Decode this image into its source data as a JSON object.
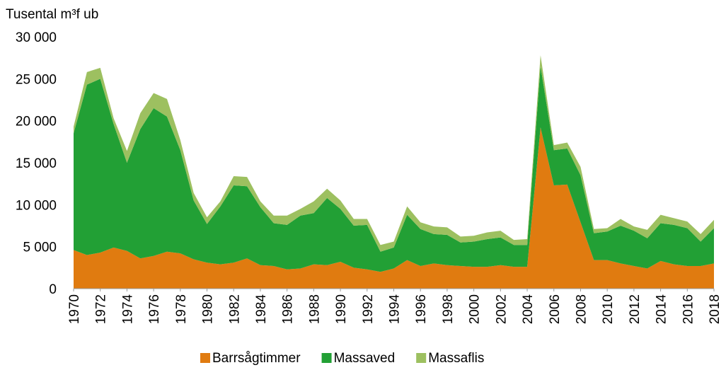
{
  "chart_data": {
    "type": "stacked_area",
    "y_axis_label": "Tusental m³f ub",
    "x": [
      1970,
      1971,
      1972,
      1973,
      1974,
      1975,
      1976,
      1977,
      1978,
      1979,
      1980,
      1981,
      1982,
      1983,
      1984,
      1985,
      1986,
      1987,
      1988,
      1989,
      1990,
      1991,
      1992,
      1993,
      1994,
      1995,
      1996,
      1997,
      1998,
      1999,
      2000,
      2001,
      2002,
      2003,
      2004,
      2005,
      2006,
      2007,
      2008,
      2009,
      2010,
      2011,
      2012,
      2013,
      2014,
      2015,
      2016,
      2017,
      2018
    ],
    "xlim": [
      1970,
      2018
    ],
    "xticks": [
      1970,
      1972,
      1974,
      1976,
      1978,
      1980,
      1982,
      1984,
      1986,
      1988,
      1990,
      1992,
      1994,
      1996,
      1998,
      2000,
      2002,
      2004,
      2006,
      2008,
      2010,
      2012,
      2014,
      2016,
      2018
    ],
    "ylim": [
      0,
      30000
    ],
    "yticks": [
      0,
      {
        "value": 5000,
        "label": "5 000"
      },
      {
        "value": 10000,
        "label": "10 000"
      },
      {
        "value": 15000,
        "label": "15 000"
      },
      {
        "value": 20000,
        "label": "20 000"
      },
      {
        "value": 25000,
        "label": "25 000"
      },
      {
        "value": 30000,
        "label": "30 000"
      }
    ],
    "legend": "bottom",
    "series": [
      {
        "name": "Barrsågtimmer",
        "color": "#e07b10",
        "values": [
          4600,
          4000,
          4300,
          4900,
          4500,
          3600,
          3900,
          4400,
          4200,
          3500,
          3100,
          2900,
          3100,
          3600,
          2800,
          2700,
          2300,
          2400,
          2900,
          2800,
          3200,
          2500,
          2300,
          2000,
          2400,
          3400,
          2700,
          3000,
          2800,
          2700,
          2600,
          2600,
          2800,
          2600,
          2600,
          19200,
          12300,
          12400,
          7900,
          3400,
          3400,
          3000,
          2700,
          2400,
          3300,
          2900,
          2700,
          2700,
          3000
        ]
      },
      {
        "name": "Massaved",
        "color": "#22a035",
        "values": [
          13900,
          20300,
          20700,
          14700,
          10500,
          15400,
          17600,
          16100,
          12300,
          7000,
          4600,
          6900,
          9200,
          8600,
          6900,
          5100,
          5300,
          6300,
          6100,
          8000,
          6300,
          5000,
          5300,
          2400,
          2500,
          5400,
          4400,
          3500,
          3600,
          2800,
          3000,
          3300,
          3300,
          2600,
          2600,
          7300,
          4200,
          4300,
          5600,
          3200,
          3400,
          4500,
          4200,
          3600,
          4500,
          4700,
          4500,
          2900,
          4200
        ]
      },
      {
        "name": "Massaflis",
        "color": "#9dc060",
        "values": [
          800,
          1500,
          1300,
          700,
          1400,
          1900,
          1800,
          2100,
          1200,
          900,
          800,
          600,
          1100,
          1100,
          700,
          900,
          1100,
          800,
          1400,
          1100,
          1000,
          800,
          700,
          800,
          700,
          1000,
          800,
          900,
          900,
          700,
          700,
          800,
          800,
          600,
          700,
          1300,
          600,
          700,
          1000,
          500,
          400,
          800,
          500,
          1000,
          1000,
          800,
          800,
          900,
          1000
        ]
      }
    ]
  }
}
